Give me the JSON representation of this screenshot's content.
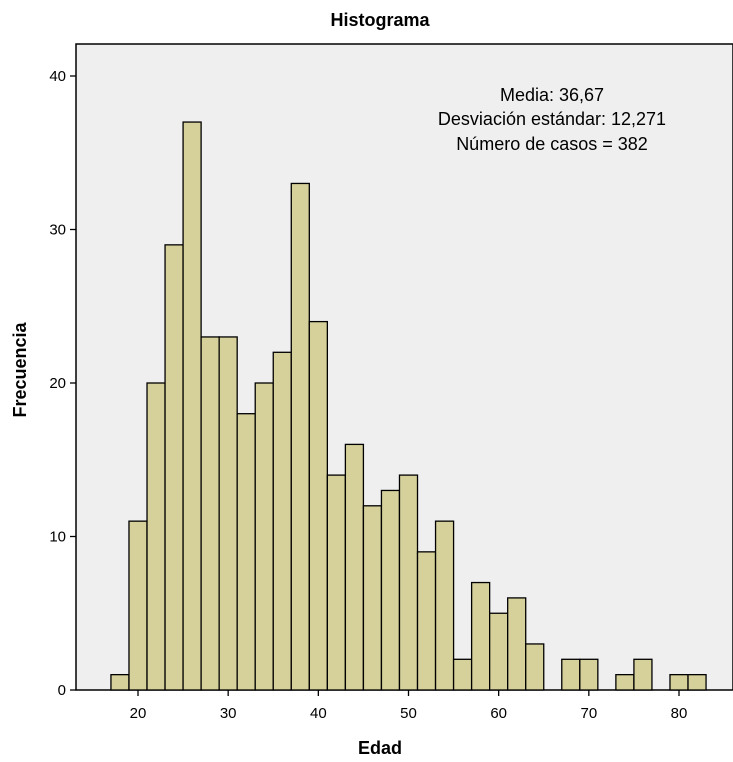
{
  "chart_data": {
    "type": "bar",
    "title": "Histograma",
    "xlabel": "Edad",
    "ylabel": "Frecuencia",
    "bin_width": 2,
    "x_range": [
      14.5,
      85
    ],
    "ylim": [
      0,
      42
    ],
    "x_ticks": [
      "20",
      "30",
      "40",
      "50",
      "60",
      "70",
      "80"
    ],
    "y_ticks": [
      "0",
      "10",
      "20",
      "30",
      "40"
    ],
    "bins": [
      {
        "start": 17,
        "count": 1
      },
      {
        "start": 19,
        "count": 11
      },
      {
        "start": 21,
        "count": 20
      },
      {
        "start": 23,
        "count": 29
      },
      {
        "start": 25,
        "count": 37
      },
      {
        "start": 27,
        "count": 23
      },
      {
        "start": 29,
        "count": 23
      },
      {
        "start": 31,
        "count": 18
      },
      {
        "start": 33,
        "count": 20
      },
      {
        "start": 35,
        "count": 22
      },
      {
        "start": 37,
        "count": 33
      },
      {
        "start": 39,
        "count": 24
      },
      {
        "start": 41,
        "count": 14
      },
      {
        "start": 43,
        "count": 16
      },
      {
        "start": 45,
        "count": 12
      },
      {
        "start": 47,
        "count": 13
      },
      {
        "start": 49,
        "count": 14
      },
      {
        "start": 51,
        "count": 9
      },
      {
        "start": 53,
        "count": 11
      },
      {
        "start": 55,
        "count": 2
      },
      {
        "start": 57,
        "count": 7
      },
      {
        "start": 59,
        "count": 5
      },
      {
        "start": 61,
        "count": 6
      },
      {
        "start": 63,
        "count": 3
      },
      {
        "start": 67,
        "count": 2
      },
      {
        "start": 69,
        "count": 2
      },
      {
        "start": 73,
        "count": 1
      },
      {
        "start": 75,
        "count": 2
      },
      {
        "start": 79,
        "count": 1
      },
      {
        "start": 81,
        "count": 1
      }
    ],
    "stats": {
      "mean": "Media: 36,67",
      "std": "Desviación estándar: 12,271",
      "n": "Número de casos = 382"
    },
    "grid": false,
    "colors": {
      "plot_background": "#efefef",
      "bar_fill": "#d6d09a",
      "bar_stroke": "#000000"
    }
  }
}
